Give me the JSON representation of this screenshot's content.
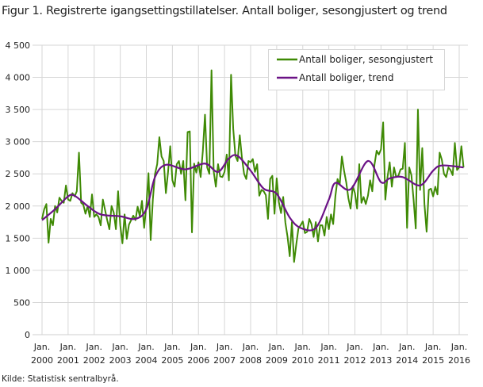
{
  "title": "Figur 1. Registrerte igangsettingstillatelser. Antall boliger, sesongjustert og trend",
  "source": "Kilde: Statistisk sentralbyrå.",
  "chart_data": {
    "type": "line",
    "title": "Figur 1. Registrerte igangsettingstillatelser. Antall boliger, sesongjustert og trend",
    "xlabel": "",
    "ylabel": "",
    "ylim": [
      0,
      4500
    ],
    "yticks": [
      0,
      500,
      1000,
      1500,
      2000,
      2500,
      3000,
      3500,
      4000,
      4500
    ],
    "ytick_labels": [
      "0",
      "500",
      "1 000",
      "1 500",
      "2 000",
      "2 500",
      "3 000",
      "3 500",
      "4 000",
      "4 500"
    ],
    "xtick_labels": [
      [
        "Jan.",
        "2000"
      ],
      [
        "Jan.",
        "2001"
      ],
      [
        "Jan.",
        "2002"
      ],
      [
        "Jan.",
        "2003"
      ],
      [
        "Jan.",
        "2004"
      ],
      [
        "Jan.",
        "2005"
      ],
      [
        "Jan.",
        "2006"
      ],
      [
        "Jan.",
        "2007"
      ],
      [
        "Jan.",
        "2008"
      ],
      [
        "Jan.",
        "2009"
      ],
      [
        "Jan.",
        "2010"
      ],
      [
        "Jan.",
        "2011"
      ],
      [
        "Jan.",
        "2012"
      ],
      [
        "Jan.",
        "2013"
      ],
      [
        "Jan.",
        "2014"
      ],
      [
        "Jan.",
        "2015"
      ],
      [
        "Jan.",
        "2016"
      ]
    ],
    "grid": true,
    "legend_position": "top-right",
    "series": [
      {
        "name": "Antall boliger, sesongjustert",
        "color": "#3f8a05",
        "monthly_values_by_year": {
          "2000": [
            1800,
            1950,
            2030,
            1430,
            1800,
            1700,
            2000,
            1900,
            2130,
            2080,
            2050,
            2320
          ],
          "2001": [
            2100,
            2080,
            2200,
            2150,
            2230,
            2830,
            2050,
            2020,
            1880,
            2000,
            1830,
            2180
          ],
          "2002": [
            1830,
            1870,
            1830,
            1700,
            2100,
            1940,
            1780,
            1640,
            2000,
            1900,
            1640,
            2230
          ],
          "2003": [
            1700,
            1420,
            1870,
            1490,
            1710,
            1780,
            1850,
            1780,
            1990,
            1840,
            2080,
            1660
          ],
          "2004": [
            2000,
            2510,
            1470,
            2100,
            2500,
            2650,
            3070,
            2770,
            2700,
            2200,
            2530,
            2930
          ],
          "2005": [
            2400,
            2300,
            2650,
            2700,
            2500,
            2700,
            2090,
            3150,
            3160,
            1590,
            2660,
            2520
          ],
          "2006": [
            2680,
            2450,
            2850,
            3420,
            2600,
            2500,
            4110,
            2540,
            2300,
            2650,
            2460,
            2450
          ],
          "2007": [
            2530,
            2800,
            2400,
            4040,
            3200,
            2780,
            2700,
            3100,
            2750,
            2500,
            2420,
            2700
          ],
          "2008": [
            2680,
            2730,
            2530,
            2650,
            2160,
            2250,
            2230,
            2170,
            1800,
            2420,
            2470,
            1880
          ],
          "2009": [
            2430,
            2060,
            1890,
            2140,
            1740,
            1520,
            1220,
            1750,
            1130,
            1400,
            1650,
            1700
          ],
          "2010": [
            1760,
            1580,
            1600,
            1800,
            1720,
            1520,
            1750,
            1450,
            1700,
            1700,
            1540,
            1830
          ],
          "2011": [
            1640,
            1870,
            1720,
            2150,
            2420,
            2330,
            2770,
            2550,
            2370,
            2120,
            1960,
            2310
          ],
          "2012": [
            2200,
            1960,
            2650,
            2050,
            2140,
            2030,
            2160,
            2400,
            2230,
            2640,
            2860,
            2800
          ],
          "2013": [
            2880,
            3300,
            2100,
            2450,
            2680,
            2300,
            2600,
            2450,
            2470,
            2570,
            2580,
            2980
          ],
          "2014": [
            1660,
            2600,
            2480,
            2100,
            1650,
            3500,
            2250,
            2900,
            2030,
            1600,
            2250,
            2270
          ],
          "2015": [
            2150,
            2300,
            2180,
            2830,
            2720,
            2500,
            2450,
            2600,
            2560,
            2480,
            2980,
            2560
          ],
          "2016": [
            2600,
            2930,
            2600
          ]
        }
      },
      {
        "name": "Antall boliger, trend",
        "color": "#6b1286",
        "points": [
          [
            "2000-01",
            1780
          ],
          [
            "2000-07",
            1950
          ],
          [
            "2001-01",
            2150
          ],
          [
            "2001-04",
            2160
          ],
          [
            "2001-10",
            2000
          ],
          [
            "2002-04",
            1870
          ],
          [
            "2003-01",
            1840
          ],
          [
            "2003-08",
            1800
          ],
          [
            "2004-01",
            1950
          ],
          [
            "2004-05",
            2450
          ],
          [
            "2004-10",
            2640
          ],
          [
            "2005-07",
            2570
          ],
          [
            "2006-04",
            2660
          ],
          [
            "2006-10",
            2530
          ],
          [
            "2007-03",
            2740
          ],
          [
            "2007-07",
            2780
          ],
          [
            "2008-01",
            2550
          ],
          [
            "2008-07",
            2270
          ],
          [
            "2009-01",
            2190
          ],
          [
            "2009-07",
            1820
          ],
          [
            "2009-12",
            1660
          ],
          [
            "2010-07",
            1660
          ],
          [
            "2011-01",
            2100
          ],
          [
            "2011-04",
            2360
          ],
          [
            "2011-11",
            2260
          ],
          [
            "2012-07",
            2700
          ],
          [
            "2013-01",
            2370
          ],
          [
            "2013-05",
            2430
          ],
          [
            "2013-11",
            2450
          ],
          [
            "2014-07",
            2320
          ],
          [
            "2015-01",
            2550
          ],
          [
            "2015-05",
            2630
          ],
          [
            "2016-03",
            2600
          ]
        ]
      }
    ]
  }
}
